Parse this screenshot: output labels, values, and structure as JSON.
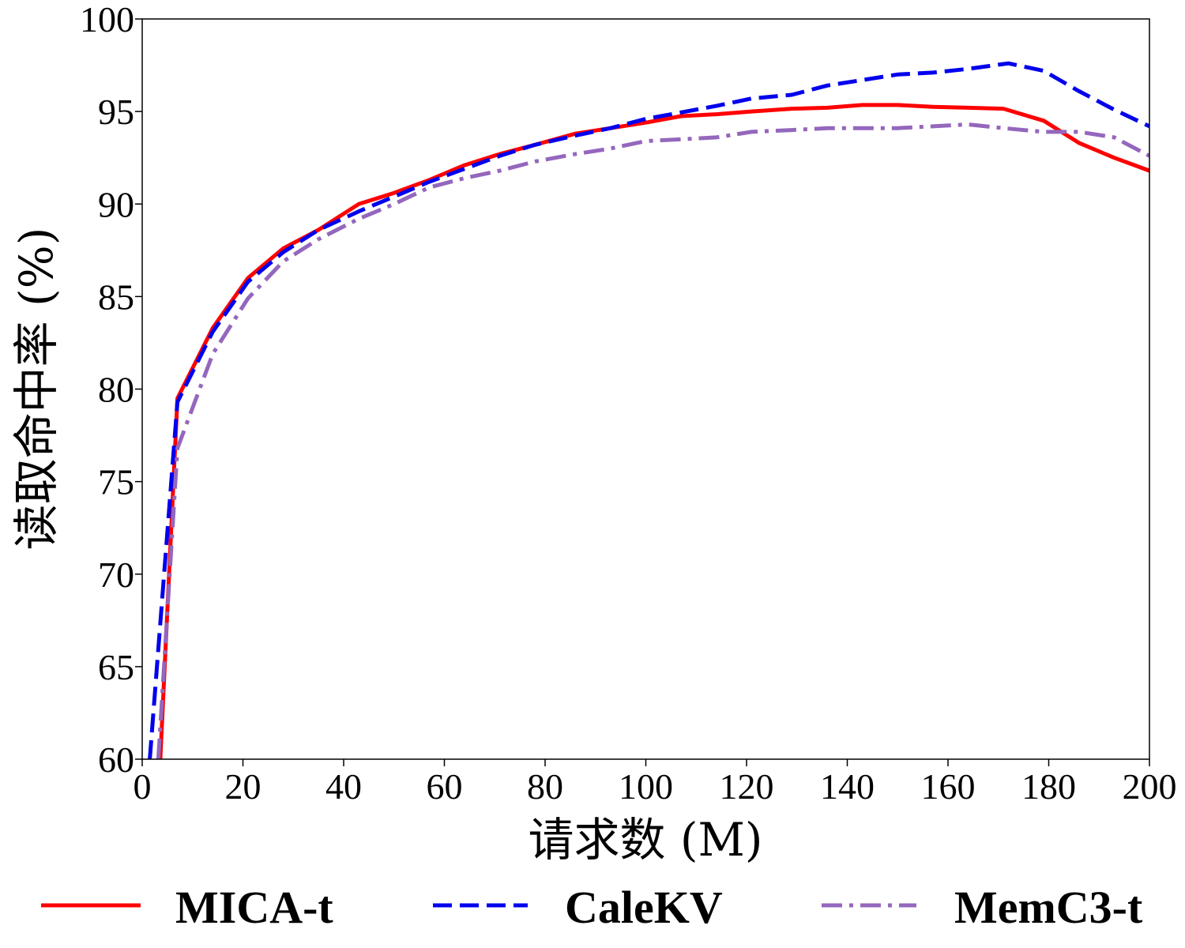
{
  "chart_data": {
    "type": "line",
    "title": "",
    "xlabel": "请求数 (M)",
    "ylabel": "读取命中率 (%)",
    "xlim": [
      0,
      200
    ],
    "ylim": [
      60,
      100
    ],
    "xticks": [
      0,
      20,
      40,
      60,
      80,
      100,
      120,
      140,
      160,
      180,
      200
    ],
    "yticks": [
      60,
      65,
      70,
      75,
      80,
      85,
      90,
      95,
      100
    ],
    "grid": false,
    "legend": "bottom",
    "series": [
      {
        "name": "MICA-t",
        "color": "#ff0000",
        "dash": "solid",
        "x": [
          3.6,
          7,
          14,
          21,
          28,
          35,
          43,
          50,
          57,
          64,
          71,
          78,
          86,
          93,
          100,
          107,
          114,
          121,
          129,
          136,
          143,
          150,
          157,
          164,
          171,
          179,
          186,
          193,
          200
        ],
        "y": [
          60,
          79.5,
          83.3,
          86.0,
          87.6,
          88.6,
          90.0,
          90.6,
          91.3,
          92.1,
          92.7,
          93.2,
          93.8,
          94.1,
          94.4,
          94.75,
          94.85,
          95.0,
          95.15,
          95.2,
          95.35,
          95.35,
          95.25,
          95.2,
          95.15,
          94.5,
          93.3,
          92.5,
          91.8
        ]
      },
      {
        "name": "CaleKV",
        "color": "#0000ee",
        "dash": "dashed",
        "x": [
          1.5,
          7,
          14,
          21,
          28,
          35,
          43,
          50,
          57,
          64,
          71,
          78,
          86,
          93,
          100,
          107,
          114,
          121,
          129,
          136,
          143,
          150,
          157,
          164,
          172,
          179,
          186,
          193,
          200
        ],
        "y": [
          60,
          79.3,
          83.1,
          85.8,
          87.4,
          88.6,
          89.6,
          90.4,
          91.2,
          91.9,
          92.6,
          93.2,
          93.7,
          94.1,
          94.6,
          94.95,
          95.3,
          95.7,
          95.9,
          96.4,
          96.7,
          97.0,
          97.1,
          97.3,
          97.6,
          97.2,
          96.1,
          95.1,
          94.2
        ]
      },
      {
        "name": "MemC3-t",
        "color": "#9467bd",
        "dash": "dashdot",
        "x": [
          3.2,
          7,
          14,
          21,
          28,
          35,
          43,
          50,
          57,
          64,
          71,
          78,
          86,
          93,
          100,
          107,
          114,
          121,
          129,
          136,
          143,
          150,
          157,
          164,
          171,
          179,
          186,
          193,
          200
        ],
        "y": [
          60,
          76.8,
          81.9,
          84.9,
          86.9,
          88.1,
          89.2,
          90.0,
          90.9,
          91.4,
          91.8,
          92.3,
          92.7,
          93.0,
          93.4,
          93.5,
          93.6,
          93.9,
          94.0,
          94.1,
          94.1,
          94.1,
          94.2,
          94.3,
          94.1,
          93.9,
          93.9,
          93.6,
          92.6
        ]
      }
    ]
  }
}
